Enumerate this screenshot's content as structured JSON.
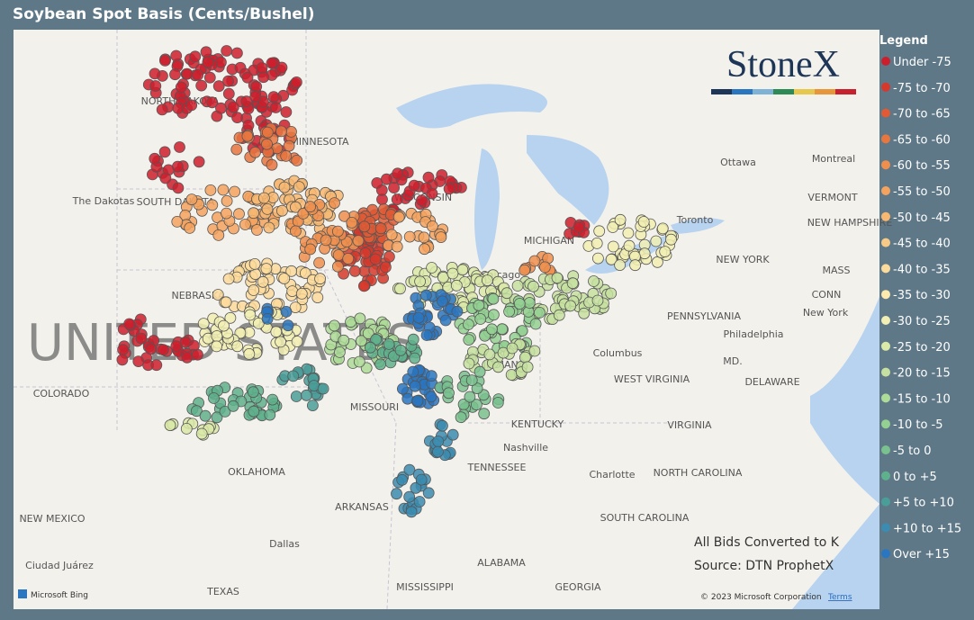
{
  "title": "Soybean Spot Basis (Cents/Bushel)",
  "logo": "StoneX",
  "legend": {
    "title": "Legend",
    "items": [
      {
        "label": "Under -75",
        "color": "#cc1f2d"
      },
      {
        "label": "-75 to -70",
        "color": "#d6382c"
      },
      {
        "label": "-70 to -65",
        "color": "#df5a35"
      },
      {
        "label": "-65 to -60",
        "color": "#e8763f"
      },
      {
        "label": "-60 to -55",
        "color": "#ef8f4d"
      },
      {
        "label": "-55 to -50",
        "color": "#f4a35f"
      },
      {
        "label": "-50 to -45",
        "color": "#f7b872"
      },
      {
        "label": "-45 to -40",
        "color": "#f9ca86"
      },
      {
        "label": "-40 to -35",
        "color": "#fbdb9b"
      },
      {
        "label": "-35 to -30",
        "color": "#fbe9ae"
      },
      {
        "label": "-30 to -25",
        "color": "#f1efb3"
      },
      {
        "label": "-25 to -20",
        "color": "#dbe9a8"
      },
      {
        "label": "-20 to -15",
        "color": "#c5e0a0"
      },
      {
        "label": "-15 to -10",
        "color": "#addb98"
      },
      {
        "label": "-10 to -5",
        "color": "#93d092"
      },
      {
        "label": "-5 to 0",
        "color": "#79c18e"
      },
      {
        "label": "0 to +5",
        "color": "#5fb08c"
      },
      {
        "label": "+5 to +10",
        "color": "#4a9e99"
      },
      {
        "label": "+10 to +15",
        "color": "#3b8cb0"
      },
      {
        "label": "Over +15",
        "color": "#2a76c0"
      }
    ]
  },
  "notes": [
    "All Bids Converted to K",
    "Source: DTN ProphetX"
  ],
  "watermark": "UNITED STATES",
  "attribution": {
    "bing": "Microsoft Bing",
    "copyright": "© 2023 Microsoft Corporation",
    "terms": "Terms"
  },
  "places": [
    "NORTH DAKOTA",
    "MINNESOTA",
    "The Dakotas",
    "SOUTH DAKOTA",
    "NEBRASKA",
    "COLORADO",
    "MISSOURI",
    "KENTUCKY",
    "TENNESSEE",
    "OKLAHOMA",
    "ARKANSAS",
    "NEW MEXICO",
    "Dallas",
    "Ciudad Juárez",
    "TEXAS",
    "MISSISSIPPI",
    "ALABAMA",
    "GEORGIA",
    "SOUTH CAROLINA",
    "NORTH CAROLINA",
    "Charlotte",
    "Nashville",
    "VIRGINIA",
    "WEST VIRGINIA",
    "Columbus",
    "PENNSYLVANIA",
    "New York",
    "NEW YORK",
    "Philadelphia",
    "MD.",
    "DELAWARE",
    "Ottawa",
    "Montreal",
    "VERMONT",
    "NEW HAMPSHIRE",
    "MASS",
    "CONN",
    "Chicago",
    "MICHIGAN",
    "INDIANA",
    "WISCONSIN",
    "Toronto"
  ]
}
